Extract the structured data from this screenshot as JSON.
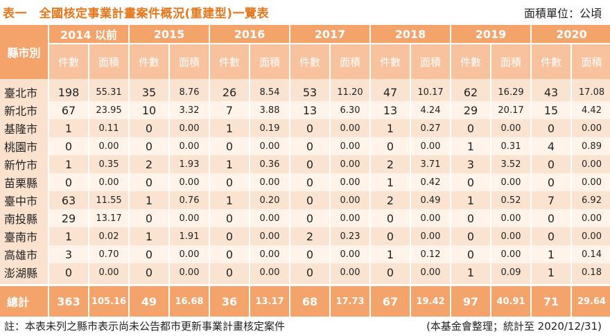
{
  "title": "表一　全國核定事業計畫案件概況(重建型)一覽表",
  "unit": "面積單位：公頃",
  "header": {
    "corner": "縣市別",
    "years": [
      "2014 以前",
      "2015",
      "2016",
      "2017",
      "2018",
      "2019",
      "2020"
    ],
    "count_label": "件數",
    "area_label": "面積"
  },
  "rows": [
    {
      "name": "臺北市",
      "values": [
        "198",
        "55.31",
        "35",
        "8.76",
        "26",
        "8.54",
        "53",
        "11.20",
        "47",
        "10.17",
        "62",
        "16.29",
        "43",
        "17.08"
      ]
    },
    {
      "name": "新北市",
      "values": [
        "67",
        "23.95",
        "10",
        "3.32",
        "7",
        "3.88",
        "13",
        "6.30",
        "13",
        "4.24",
        "29",
        "20.17",
        "15",
        "4.42"
      ]
    },
    {
      "name": "基隆市",
      "values": [
        "1",
        "0.11",
        "0",
        "0.00",
        "1",
        "0.19",
        "0",
        "0.00",
        "1",
        "0.27",
        "0",
        "0.00",
        "0",
        "0.00"
      ]
    },
    {
      "name": "桃園市",
      "values": [
        "0",
        "0.00",
        "0",
        "0.00",
        "0",
        "0.00",
        "0",
        "0.00",
        "0",
        "0.00",
        "1",
        "0.31",
        "4",
        "0.89"
      ]
    },
    {
      "name": "新竹市",
      "values": [
        "1",
        "0.35",
        "2",
        "1.93",
        "1",
        "0.36",
        "0",
        "0.00",
        "2",
        "3.71",
        "3",
        "3.52",
        "0",
        "0.00"
      ]
    },
    {
      "name": "苗栗縣",
      "values": [
        "0",
        "0.00",
        "0",
        "0.00",
        "0",
        "0.00",
        "0",
        "0.00",
        "1",
        "0.42",
        "0",
        "0.00",
        "0",
        "0.00"
      ]
    },
    {
      "name": "臺中市",
      "values": [
        "63",
        "11.55",
        "1",
        "0.76",
        "1",
        "0.20",
        "0",
        "0.00",
        "2",
        "0.49",
        "1",
        "0.52",
        "7",
        "6.92"
      ]
    },
    {
      "name": "南投縣",
      "values": [
        "29",
        "13.17",
        "0",
        "0.00",
        "0",
        "0.00",
        "0",
        "0.00",
        "0",
        "0.00",
        "0",
        "0.00",
        "0",
        "0.00"
      ]
    },
    {
      "name": "臺南市",
      "values": [
        "1",
        "0.02",
        "1",
        "1.91",
        "0",
        "0.00",
        "2",
        "0.23",
        "0",
        "0.00",
        "0",
        "0.00",
        "0",
        "0.00"
      ]
    },
    {
      "name": "高雄市",
      "values": [
        "3",
        "0.70",
        "0",
        "0.00",
        "0",
        "0.00",
        "0",
        "0.00",
        "1",
        "0.12",
        "0",
        "0.00",
        "1",
        "0.14"
      ]
    },
    {
      "name": "澎湖縣",
      "values": [
        "0",
        "0.00",
        "0",
        "0.00",
        "0",
        "0.00",
        "0",
        "0.00",
        "0",
        "0.00",
        "1",
        "0.09",
        "1",
        "0.18"
      ]
    }
  ],
  "total": {
    "name": "總計",
    "values": [
      "363",
      "105.16",
      "49",
      "16.68",
      "36",
      "13.17",
      "68",
      "17.73",
      "67",
      "19.42",
      "97",
      "40.91",
      "71",
      "29.64"
    ]
  },
  "footer": {
    "note": "註：本表未列之縣市表示尚未公告都市更新事業計畫核定案件",
    "source": "(本基金會整理；統計至 2020/12/31)"
  }
}
